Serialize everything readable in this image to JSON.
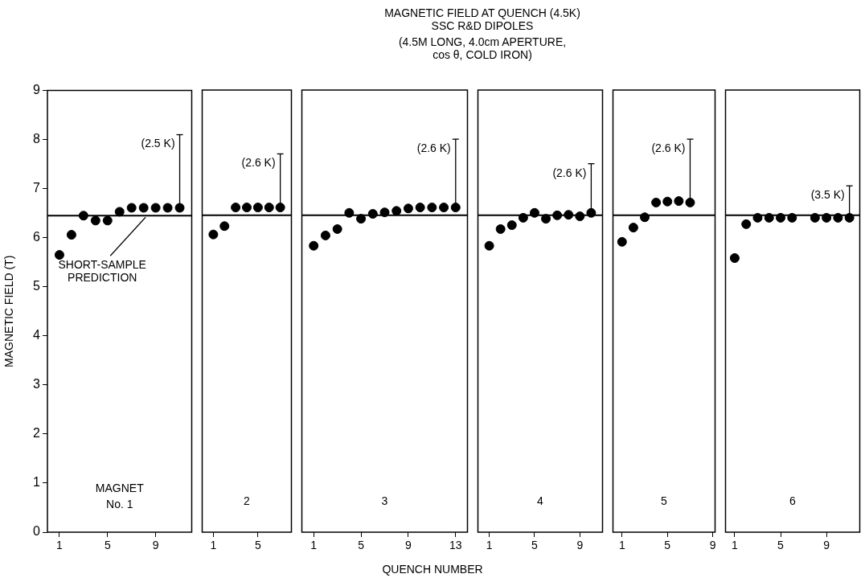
{
  "chart_data": [
    {
      "type": "scatter",
      "ylabel": "MAGNETIC FIELD (T)",
      "x": [
        1,
        2,
        3,
        4,
        5,
        6,
        7,
        8,
        9,
        10,
        11
      ],
      "values": [
        5.65,
        6.06,
        6.45,
        6.35,
        6.35,
        6.53,
        6.61,
        6.61,
        6.61,
        6.61,
        6.61
      ],
      "color": "#000000",
      "marker": "circle",
      "errors": [
        null,
        null,
        null,
        null,
        null,
        null,
        null,
        null,
        null,
        null,
        [
          6.61,
          8.1
        ]
      ],
      "xlim": [
        0,
        12
      ],
      "xticks": [
        1,
        5,
        9
      ],
      "ylim": [
        0,
        9
      ],
      "yticks": [
        0,
        1,
        2,
        3,
        4,
        5,
        6,
        7,
        8,
        9
      ],
      "ref_lines": [
        {
          "axis": "y",
          "value": 6.45,
          "label": "SHORT-SAMPLE\nPREDICTION"
        }
      ],
      "annotations": [
        "MAGNET\nNo. 1",
        "(2.5 K)"
      ]
    },
    {
      "type": "scatter",
      "x": [
        1,
        2,
        3,
        4,
        5,
        6,
        7
      ],
      "values": [
        6.06,
        6.23,
        6.61,
        6.61,
        6.61,
        6.61,
        6.61
      ],
      "color": "#000000",
      "marker": "circle",
      "errors": [
        null,
        null,
        null,
        null,
        null,
        null,
        [
          6.61,
          7.7
        ]
      ],
      "xlim": [
        0,
        8
      ],
      "xticks": [
        1,
        5
      ],
      "ylim": [
        0,
        9
      ],
      "tick_labels": "x",
      "ref_lines": [
        {
          "axis": "y",
          "value": 6.45
        }
      ],
      "annotations": [
        "2",
        "(2.6 K)"
      ]
    },
    {
      "type": "scatter",
      "xlabel": "QUENCH NUMBER",
      "x": [
        1,
        2,
        3,
        4,
        5,
        6,
        7,
        8,
        9,
        10,
        11,
        12,
        13
      ],
      "values": [
        5.83,
        6.04,
        6.17,
        6.5,
        6.38,
        6.48,
        6.51,
        6.54,
        6.59,
        6.61,
        6.61,
        6.61,
        6.61
      ],
      "color": "#000000",
      "marker": "circle",
      "errors": [
        null,
        null,
        null,
        null,
        null,
        null,
        null,
        null,
        null,
        null,
        null,
        null,
        [
          6.61,
          8.0
        ]
      ],
      "xlim": [
        0,
        14
      ],
      "xticks": [
        1,
        5,
        9,
        13
      ],
      "ylim": [
        0,
        9
      ],
      "tick_labels": "x",
      "ref_lines": [
        {
          "axis": "y",
          "value": 6.45
        }
      ],
      "annotations": [
        "3",
        "(2.6 K)"
      ]
    },
    {
      "type": "scatter",
      "title": "MAGNETIC FIELD AT QUENCH (4.5K)\nSSC R&D DIPOLES",
      "subtitle": "(4.5M LONG, 4.0cm APERTURE,\ncos θ, COLD IRON)",
      "x": [
        1,
        2,
        3,
        4,
        5,
        6,
        7,
        8,
        9,
        10
      ],
      "values": [
        5.83,
        6.17,
        6.25,
        6.4,
        6.5,
        6.38,
        6.45,
        6.46,
        6.43,
        6.5
      ],
      "color": "#000000",
      "marker": "circle",
      "errors": [
        null,
        null,
        null,
        null,
        null,
        null,
        null,
        null,
        null,
        [
          6.5,
          7.5
        ]
      ],
      "xlim": [
        0,
        11
      ],
      "xticks": [
        1,
        5,
        9
      ],
      "ylim": [
        0,
        9
      ],
      "tick_labels": "x",
      "ref_lines": [
        {
          "axis": "y",
          "value": 6.45
        }
      ],
      "annotations": [
        "4",
        "(2.6 K)"
      ]
    },
    {
      "type": "scatter",
      "x": [
        1,
        2,
        3,
        4,
        5,
        6,
        7
      ],
      "values": [
        5.91,
        6.2,
        6.41,
        6.71,
        6.73,
        6.74,
        6.71
      ],
      "color": "#000000",
      "marker": "circle",
      "errors": [
        null,
        null,
        null,
        null,
        null,
        null,
        [
          6.71,
          8.0
        ]
      ],
      "xlim": [
        0.2,
        9.2
      ],
      "xticks": [
        1,
        5,
        9
      ],
      "ylim": [
        0,
        9
      ],
      "tick_labels": "x",
      "ref_lines": [
        {
          "axis": "y",
          "value": 6.45
        }
      ],
      "annotations": [
        "5",
        "(2.6 K)"
      ]
    },
    {
      "type": "scatter",
      "x": [
        1,
        2,
        3,
        4,
        5,
        6,
        8,
        9,
        10,
        11
      ],
      "values": [
        5.58,
        6.27,
        6.4,
        6.4,
        6.4,
        6.4,
        6.4,
        6.4,
        6.4,
        6.4
      ],
      "color": "#000000",
      "marker": "circle",
      "errors": [
        null,
        null,
        null,
        null,
        null,
        null,
        null,
        null,
        null,
        [
          6.4,
          7.05
        ]
      ],
      "xlim": [
        0.2,
        11.9
      ],
      "xticks": [
        1,
        5,
        9
      ],
      "ylim": [
        0,
        9
      ],
      "tick_labels": "x",
      "ref_lines": [
        {
          "axis": "y",
          "value": 6.45
        }
      ],
      "annotations": [
        "6",
        "(3.5 K)"
      ]
    }
  ]
}
